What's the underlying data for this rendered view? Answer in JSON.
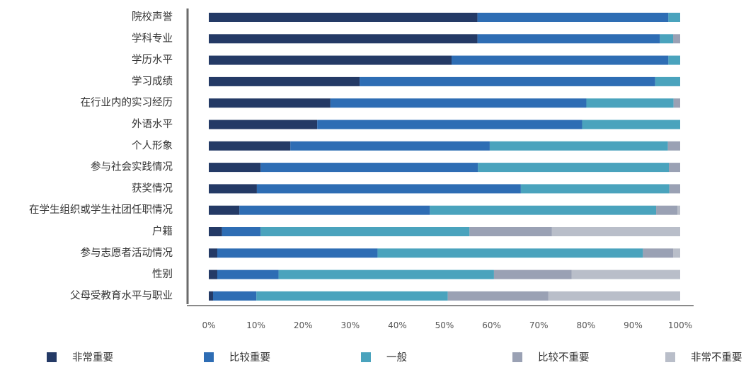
{
  "chart_data": {
    "type": "bar",
    "orientation": "horizontal",
    "stacked": true,
    "percent": true,
    "categories": [
      "院校声誉",
      "学科专业",
      "学历水平",
      "学习成绩",
      "在行业内的实习经历",
      "外语水平",
      "个人形象",
      "参与社会实践情况",
      "获奖情况",
      "在学生组织或学生社团任职情况",
      "户籍",
      "参与志愿者活动情况",
      "性别",
      "父母受教育水平与职业"
    ],
    "series": [
      {
        "name": "非常重要",
        "color": "#243a66",
        "values": [
          57,
          57,
          51.5,
          32,
          25.8,
          23,
          17.3,
          11,
          10.2,
          6.5,
          2.8,
          1.8,
          1.8,
          0.9
        ]
      },
      {
        "name": "比较重要",
        "color": "#2e6db4",
        "values": [
          40.5,
          38.7,
          46,
          62.7,
          54.3,
          56.2,
          42.3,
          46.1,
          56,
          40.4,
          8.2,
          34,
          13,
          9.2
        ]
      },
      {
        "name": "一般",
        "color": "#4aa3bd",
        "values": [
          2.5,
          2.8,
          2.5,
          5.3,
          18.5,
          20.8,
          37.8,
          40.5,
          31.5,
          48,
          44.3,
          56.3,
          45.7,
          40.6
        ]
      },
      {
        "name": "比较不重要",
        "color": "#9aa1b4",
        "values": [
          0,
          1.5,
          0,
          0,
          1.4,
          0,
          2.6,
          2.4,
          2.3,
          4.5,
          17.5,
          6.4,
          16.5,
          21.3
        ]
      },
      {
        "name": "非常不重要",
        "color": "#b9bec9",
        "values": [
          0,
          0,
          0,
          0,
          0,
          0,
          0,
          0,
          0,
          0.6,
          27.2,
          1.5,
          23,
          28
        ]
      }
    ],
    "xlim": [
      0,
      100
    ],
    "x_ticks": [
      "0%",
      "10%",
      "20%",
      "30%",
      "40%",
      "50%",
      "60%",
      "70%",
      "80%",
      "90%",
      "100%"
    ],
    "grid": false,
    "legend_position": "bottom"
  }
}
